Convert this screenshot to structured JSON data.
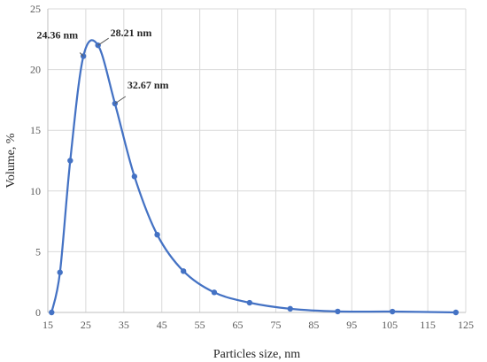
{
  "chart_data": {
    "type": "line",
    "title": "",
    "xlabel": "Particles size, nm",
    "ylabel": "Volume, %",
    "xlim": [
      15,
      125
    ],
    "ylim": [
      0,
      25
    ],
    "x_ticks": [
      15,
      25,
      35,
      45,
      55,
      65,
      75,
      85,
      95,
      105,
      115,
      125
    ],
    "y_ticks": [
      0,
      5,
      10,
      15,
      20,
      25
    ],
    "grid": true,
    "legend": "none",
    "series": [
      {
        "color": "#4472c4",
        "smooth": true,
        "markers": true,
        "points": [
          {
            "x": 16.0,
            "y": 0.0
          },
          {
            "x": 18.2,
            "y": 3.3
          },
          {
            "x": 20.9,
            "y": 12.5
          },
          {
            "x": 24.36,
            "y": 21.1
          },
          {
            "x": 28.21,
            "y": 22.0
          },
          {
            "x": 32.67,
            "y": 17.2
          },
          {
            "x": 37.8,
            "y": 11.2
          },
          {
            "x": 43.8,
            "y": 6.4
          },
          {
            "x": 50.7,
            "y": 3.4
          },
          {
            "x": 58.8,
            "y": 1.65
          },
          {
            "x": 68.1,
            "y": 0.8
          },
          {
            "x": 78.8,
            "y": 0.3
          },
          {
            "x": 91.3,
            "y": 0.08
          },
          {
            "x": 105.7,
            "y": 0.07
          },
          {
            "x": 122.4,
            "y": 0.0
          }
        ]
      }
    ],
    "annotations": [
      {
        "text": "24.36 nm",
        "x": 24.36,
        "y": 21.1,
        "placement": "upper-left"
      },
      {
        "text": "28.21 nm",
        "x": 28.21,
        "y": 22.0,
        "placement": "upper-right"
      },
      {
        "text": "32.67 nm",
        "x": 32.67,
        "y": 17.2,
        "placement": "upper-right"
      }
    ]
  }
}
